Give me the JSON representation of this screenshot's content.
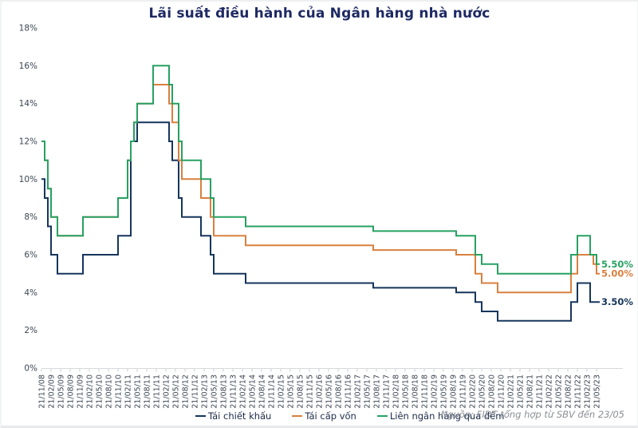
{
  "chart_data": {
    "type": "line",
    "step": true,
    "title": "Lãi suất điều hành của Ngân hàng nhà nước",
    "source": "Nguồn: FIDT tổng hợp từ SBV đến 23/05",
    "ylim": [
      0,
      18
    ],
    "y_ticks": [
      "18%",
      "16%",
      "14%",
      "12%",
      "10%",
      "8%",
      "6%",
      "4%",
      "2%",
      "0%"
    ],
    "months_total": 174,
    "x_start_label": "21/11/08",
    "x_end_label": "21/05/23",
    "grid": false,
    "legend_position": "bottom",
    "x_tick_labels": [
      "21/11/08",
      "21/02/09",
      "21/05/09",
      "21/08/09",
      "21/11/09",
      "21/02/10",
      "21/05/10",
      "21/08/10",
      "21/11/10",
      "21/02/11",
      "21/05/11",
      "21/08/11",
      "21/11/11",
      "21/02/12",
      "21/05/12",
      "21/08/12",
      "21/11/12",
      "21/02/13",
      "21/05/13",
      "21/08/13",
      "21/11/13",
      "21/02/14",
      "21/05/14",
      "21/08/14",
      "21/11/14",
      "21/02/15",
      "21/05/15",
      "21/08/15",
      "21/11/15",
      "21/02/16",
      "21/05/16",
      "21/08/16",
      "21/11/16",
      "21/02/17",
      "21/05/17",
      "21/08/17",
      "21/11/17",
      "21/02/18",
      "21/05/18",
      "21/08/18",
      "21/11/18",
      "21/02/19",
      "21/05/19",
      "21/08/19",
      "21/11/19",
      "21/02/20",
      "21/05/20",
      "21/08/20",
      "21/11/20",
      "21/02/21",
      "21/05/21",
      "21/08/21",
      "21/11/21",
      "21/02/22",
      "21/05/22",
      "21/08/22",
      "21/11/22",
      "21/02/23",
      "21/05/23"
    ],
    "series": [
      {
        "name": "Tái chiết khấu",
        "color": "#16355b",
        "end_label": "3.50%",
        "points_note": "pairs of [months after 21/11/2008, new rate %]",
        "points": [
          [
            0,
            10
          ],
          [
            1,
            9
          ],
          [
            2,
            7.5
          ],
          [
            3,
            6
          ],
          [
            5,
            5
          ],
          [
            13,
            6
          ],
          [
            24,
            7
          ],
          [
            28,
            12
          ],
          [
            30,
            13
          ],
          [
            40,
            12
          ],
          [
            41,
            11
          ],
          [
            43,
            9
          ],
          [
            44,
            8
          ],
          [
            50,
            7
          ],
          [
            53,
            6
          ],
          [
            54,
            5
          ],
          [
            64,
            4.5
          ],
          [
            104,
            4.25
          ],
          [
            130,
            4
          ],
          [
            136,
            3.5
          ],
          [
            138,
            3
          ],
          [
            143,
            2.5
          ],
          [
            166,
            3.5
          ],
          [
            168,
            4.5
          ],
          [
            172,
            3.5
          ]
        ]
      },
      {
        "name": "Tái cấp vốn",
        "color": "#d9803f",
        "end_label": "5.00%",
        "points_note": "pairs of [months after 21/11/2008, new rate %]",
        "points": [
          [
            0,
            12
          ],
          [
            1,
            11
          ],
          [
            2,
            9.5
          ],
          [
            3,
            8
          ],
          [
            5,
            7
          ],
          [
            13,
            8
          ],
          [
            24,
            9
          ],
          [
            27,
            11
          ],
          [
            28,
            12
          ],
          [
            29,
            13
          ],
          [
            30,
            14
          ],
          [
            35,
            15
          ],
          [
            40,
            14
          ],
          [
            41,
            13
          ],
          [
            43,
            11
          ],
          [
            44,
            10
          ],
          [
            50,
            9
          ],
          [
            53,
            8
          ],
          [
            54,
            7
          ],
          [
            64,
            6.5
          ],
          [
            104,
            6.25
          ],
          [
            130,
            6
          ],
          [
            136,
            5
          ],
          [
            138,
            4.5
          ],
          [
            143,
            4
          ],
          [
            166,
            5
          ],
          [
            168,
            6
          ],
          [
            173,
            5.5
          ],
          [
            174,
            5
          ]
        ]
      },
      {
        "name": "Liên ngân hàng qua đêm",
        "color": "#27a162",
        "end_label": "5.50%",
        "points_note": "pairs of [months after 21/11/2008, new rate %]",
        "points": [
          [
            0,
            12
          ],
          [
            1,
            11
          ],
          [
            2,
            9.5
          ],
          [
            3,
            8
          ],
          [
            5,
            7
          ],
          [
            13,
            8
          ],
          [
            24,
            9
          ],
          [
            27,
            11
          ],
          [
            28,
            12
          ],
          [
            29,
            13
          ],
          [
            30,
            14
          ],
          [
            35,
            16
          ],
          [
            40,
            15
          ],
          [
            41,
            14
          ],
          [
            43,
            12
          ],
          [
            44,
            11
          ],
          [
            50,
            10
          ],
          [
            53,
            9
          ],
          [
            54,
            8
          ],
          [
            64,
            7.5
          ],
          [
            104,
            7.25
          ],
          [
            130,
            7
          ],
          [
            136,
            6
          ],
          [
            138,
            5.5
          ],
          [
            143,
            5
          ],
          [
            166,
            6
          ],
          [
            168,
            7
          ],
          [
            172,
            6
          ],
          [
            174,
            5.5
          ]
        ]
      }
    ]
  }
}
